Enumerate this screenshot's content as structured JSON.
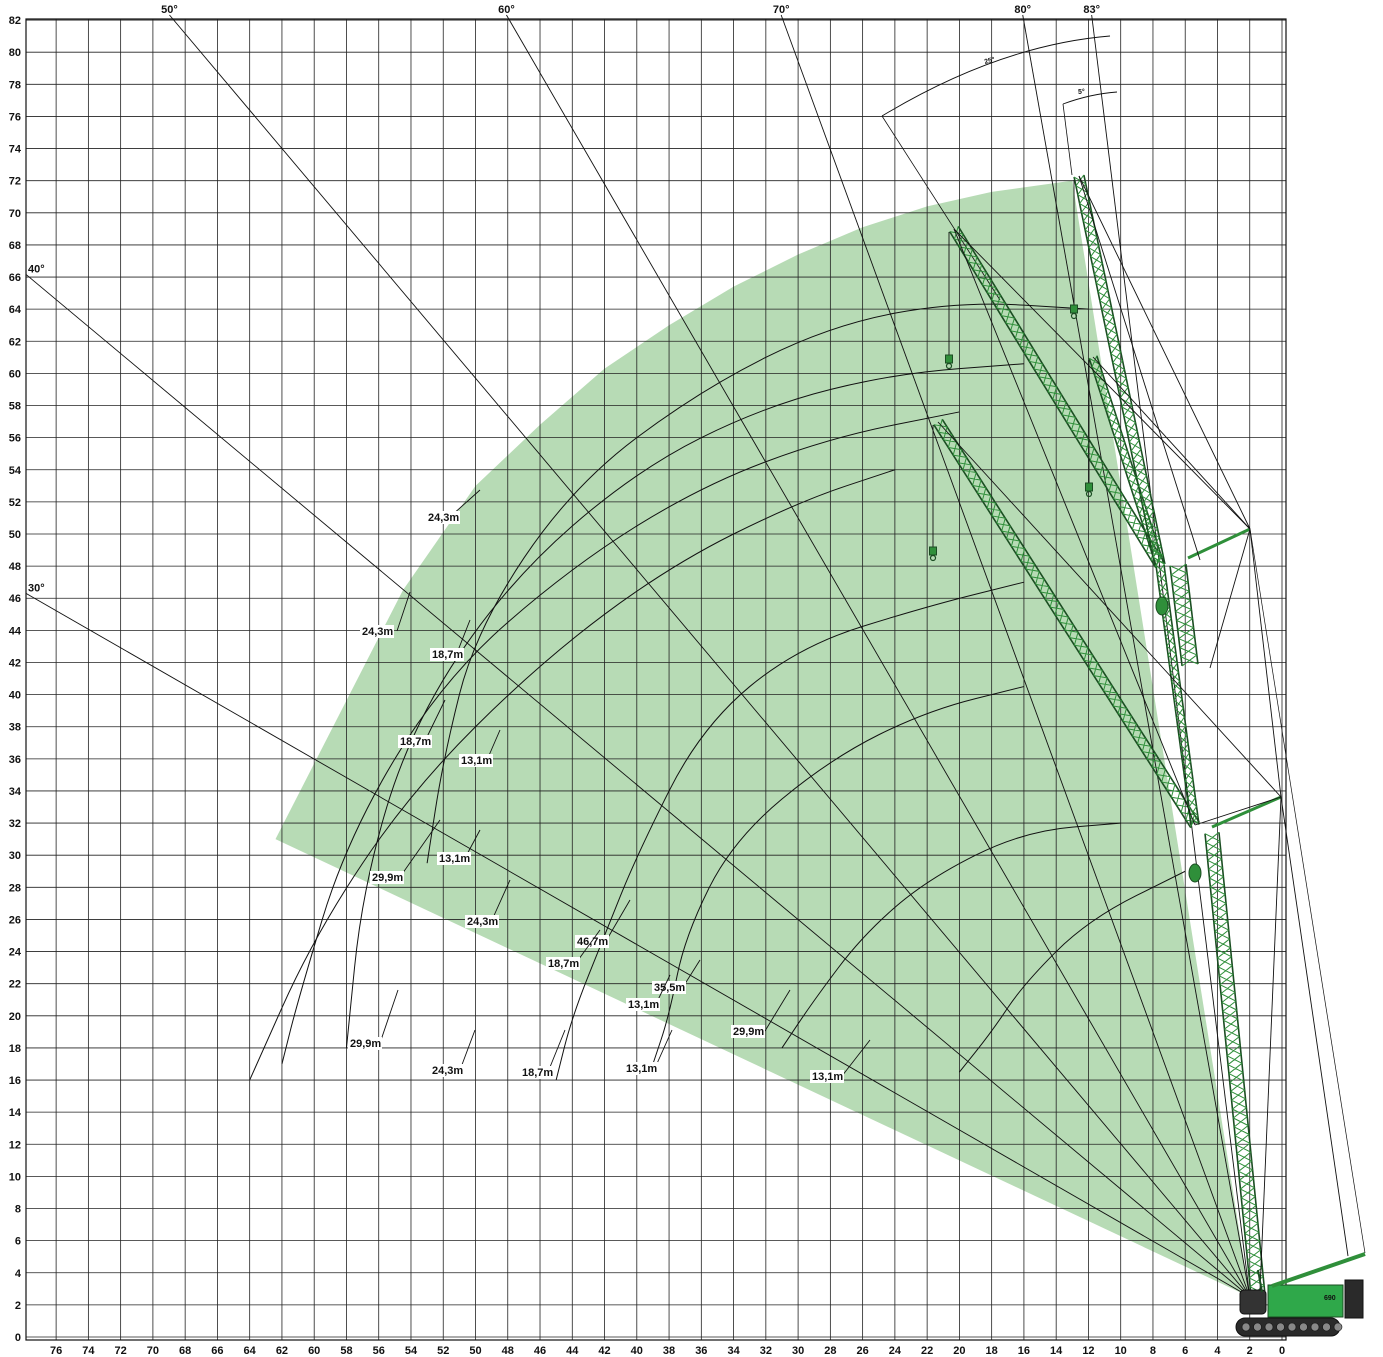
{
  "chart_data": {
    "type": "line",
    "title": "",
    "xlabel": "",
    "ylabel": "",
    "xlim": [
      76,
      0
    ],
    "ylim": [
      0,
      82
    ],
    "x_reversed": true,
    "grid": true,
    "x_ticks": [
      76,
      74,
      72,
      70,
      68,
      66,
      64,
      62,
      60,
      58,
      56,
      54,
      52,
      50,
      48,
      46,
      44,
      42,
      40,
      38,
      36,
      34,
      32,
      30,
      28,
      26,
      24,
      22,
      20,
      18,
      16,
      14,
      12,
      10,
      8,
      6,
      4,
      2,
      0
    ],
    "y_ticks": [
      0,
      2,
      4,
      6,
      8,
      10,
      12,
      14,
      16,
      18,
      20,
      22,
      24,
      26,
      28,
      30,
      32,
      34,
      36,
      38,
      40,
      42,
      44,
      46,
      48,
      50,
      52,
      54,
      56,
      58,
      60,
      62,
      64,
      66,
      68,
      70,
      72,
      74,
      76,
      78,
      80,
      82
    ],
    "pivot": {
      "x": 2.0,
      "y": 2.5
    },
    "boom_angles": [
      {
        "label": "30°",
        "angle": 30
      },
      {
        "label": "40°",
        "angle": 40
      },
      {
        "label": "50°",
        "angle": 50
      },
      {
        "label": "60°",
        "angle": 60
      },
      {
        "label": "70°",
        "angle": 70
      },
      {
        "label": "80°",
        "angle": 80
      },
      {
        "label": "83°",
        "angle": 83
      }
    ],
    "offset_angles": [
      {
        "label": "25°"
      },
      {
        "label": "5°"
      }
    ],
    "working_range": {
      "color": "#b7dbb5",
      "outline": [
        [
          62.4,
          31.0
        ],
        [
          54.5,
          46.5
        ],
        [
          50,
          53
        ],
        [
          46,
          56.8
        ],
        [
          42,
          60.3
        ],
        [
          38,
          63.0
        ],
        [
          34,
          65.4
        ],
        [
          30,
          67.4
        ],
        [
          26,
          69.1
        ],
        [
          22,
          70.4
        ],
        [
          18,
          71.3
        ],
        [
          13,
          72.0
        ],
        [
          2,
          2.5
        ]
      ]
    },
    "series": [
      {
        "name": "29,9m",
        "points": [
          [
            24,
            54.0
          ],
          [
            30,
            52.0
          ],
          [
            38,
            48.0
          ],
          [
            46,
            42.0
          ],
          [
            54,
            34.0
          ],
          [
            60,
            25.0
          ],
          [
            64,
            16.0
          ]
        ]
      },
      {
        "name": "24,3m",
        "points": [
          [
            20,
            57.6
          ],
          [
            28,
            56.0
          ],
          [
            36,
            53.0
          ],
          [
            44,
            48.0
          ],
          [
            52,
            41.0
          ],
          [
            58,
            31.0
          ],
          [
            61,
            21.0
          ],
          [
            62,
            17.0
          ]
        ]
      },
      {
        "name": "18,7m",
        "points": [
          [
            16,
            60.6
          ],
          [
            24,
            60.0
          ],
          [
            32,
            58.0
          ],
          [
            40,
            54.0
          ],
          [
            48,
            47.0
          ],
          [
            54,
            38.0
          ],
          [
            57,
            28.0
          ],
          [
            58,
            18.0
          ]
        ]
      },
      {
        "name": "13,1m",
        "points": [
          [
            12,
            64.0
          ],
          [
            20,
            64.5
          ],
          [
            28,
            63.0
          ],
          [
            36,
            59.0
          ],
          [
            44,
            53.0
          ],
          [
            50,
            44.0
          ],
          [
            52,
            36.0
          ],
          [
            53,
            29.5
          ]
        ]
      },
      {
        "name": "46,7m",
        "points": [
          [
            16,
            47.0
          ],
          [
            22,
            45.5
          ],
          [
            30,
            43.0
          ],
          [
            36,
            38.0
          ],
          [
            40,
            30.0
          ],
          [
            42,
            25.0
          ],
          [
            44,
            20.0
          ],
          [
            45,
            16.0
          ]
        ]
      },
      {
        "name": "35,5m",
        "points": [
          [
            16,
            40.5
          ],
          [
            22,
            39.0
          ],
          [
            28,
            36.0
          ],
          [
            34,
            31.0
          ],
          [
            37,
            25.0
          ],
          [
            38,
            20.0
          ],
          [
            39,
            17.0
          ]
        ]
      },
      {
        "name": "29,9m",
        "points": [
          [
            10,
            32.0
          ],
          [
            16,
            31.5
          ],
          [
            22,
            28.5
          ],
          [
            26,
            25.0
          ],
          [
            29,
            21.0
          ],
          [
            31,
            18.0
          ]
        ]
      },
      {
        "name": "13,1m",
        "points": [
          [
            6,
            29.0
          ],
          [
            12,
            26.0
          ],
          [
            16,
            22.0
          ],
          [
            18,
            19.0
          ],
          [
            20,
            16.5
          ]
        ]
      }
    ],
    "labels": [
      {
        "text": "24,3m"
      },
      {
        "text": "24,3m"
      },
      {
        "text": "18,7m"
      },
      {
        "text": "18,7m"
      },
      {
        "text": "13,1m"
      },
      {
        "text": "29,9m"
      },
      {
        "text": "13,1m"
      },
      {
        "text": "24,3m"
      },
      {
        "text": "46,7m"
      },
      {
        "text": "18,7m"
      },
      {
        "text": "35,5m"
      },
      {
        "text": "13,1m"
      },
      {
        "text": "29,9m"
      },
      {
        "text": "29,9m"
      },
      {
        "text": "24,3m"
      },
      {
        "text": "18,7m"
      },
      {
        "text": "13,1m"
      },
      {
        "text": "13,1m"
      }
    ],
    "crane_model": "690"
  }
}
